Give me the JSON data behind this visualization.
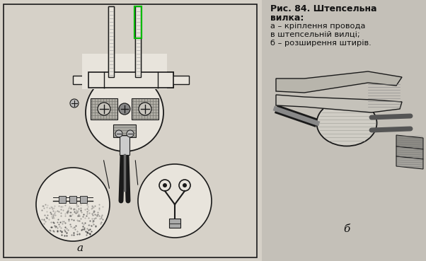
{
  "bg_left": "#d6d1c8",
  "bg_right": "#c4c0b8",
  "border_color": "#2a2a2a",
  "title_bold": "Рис. 84. Штепсельна\nвилка:",
  "line1": "а – кріплення провода",
  "line2": "в штепсельній вилці;",
  "line3": "б – розширення штирів.",
  "label_a": "а",
  "label_b": "б",
  "text_color": "#111111",
  "dark_ink": "#1a1a1a",
  "mid_ink": "#444444",
  "light_fill": "#e8e4dc",
  "hatch_fill": "#aaa9a2",
  "green_rect": "#00bb00",
  "title_fontsize": 9.0,
  "body_fontsize": 8.2
}
